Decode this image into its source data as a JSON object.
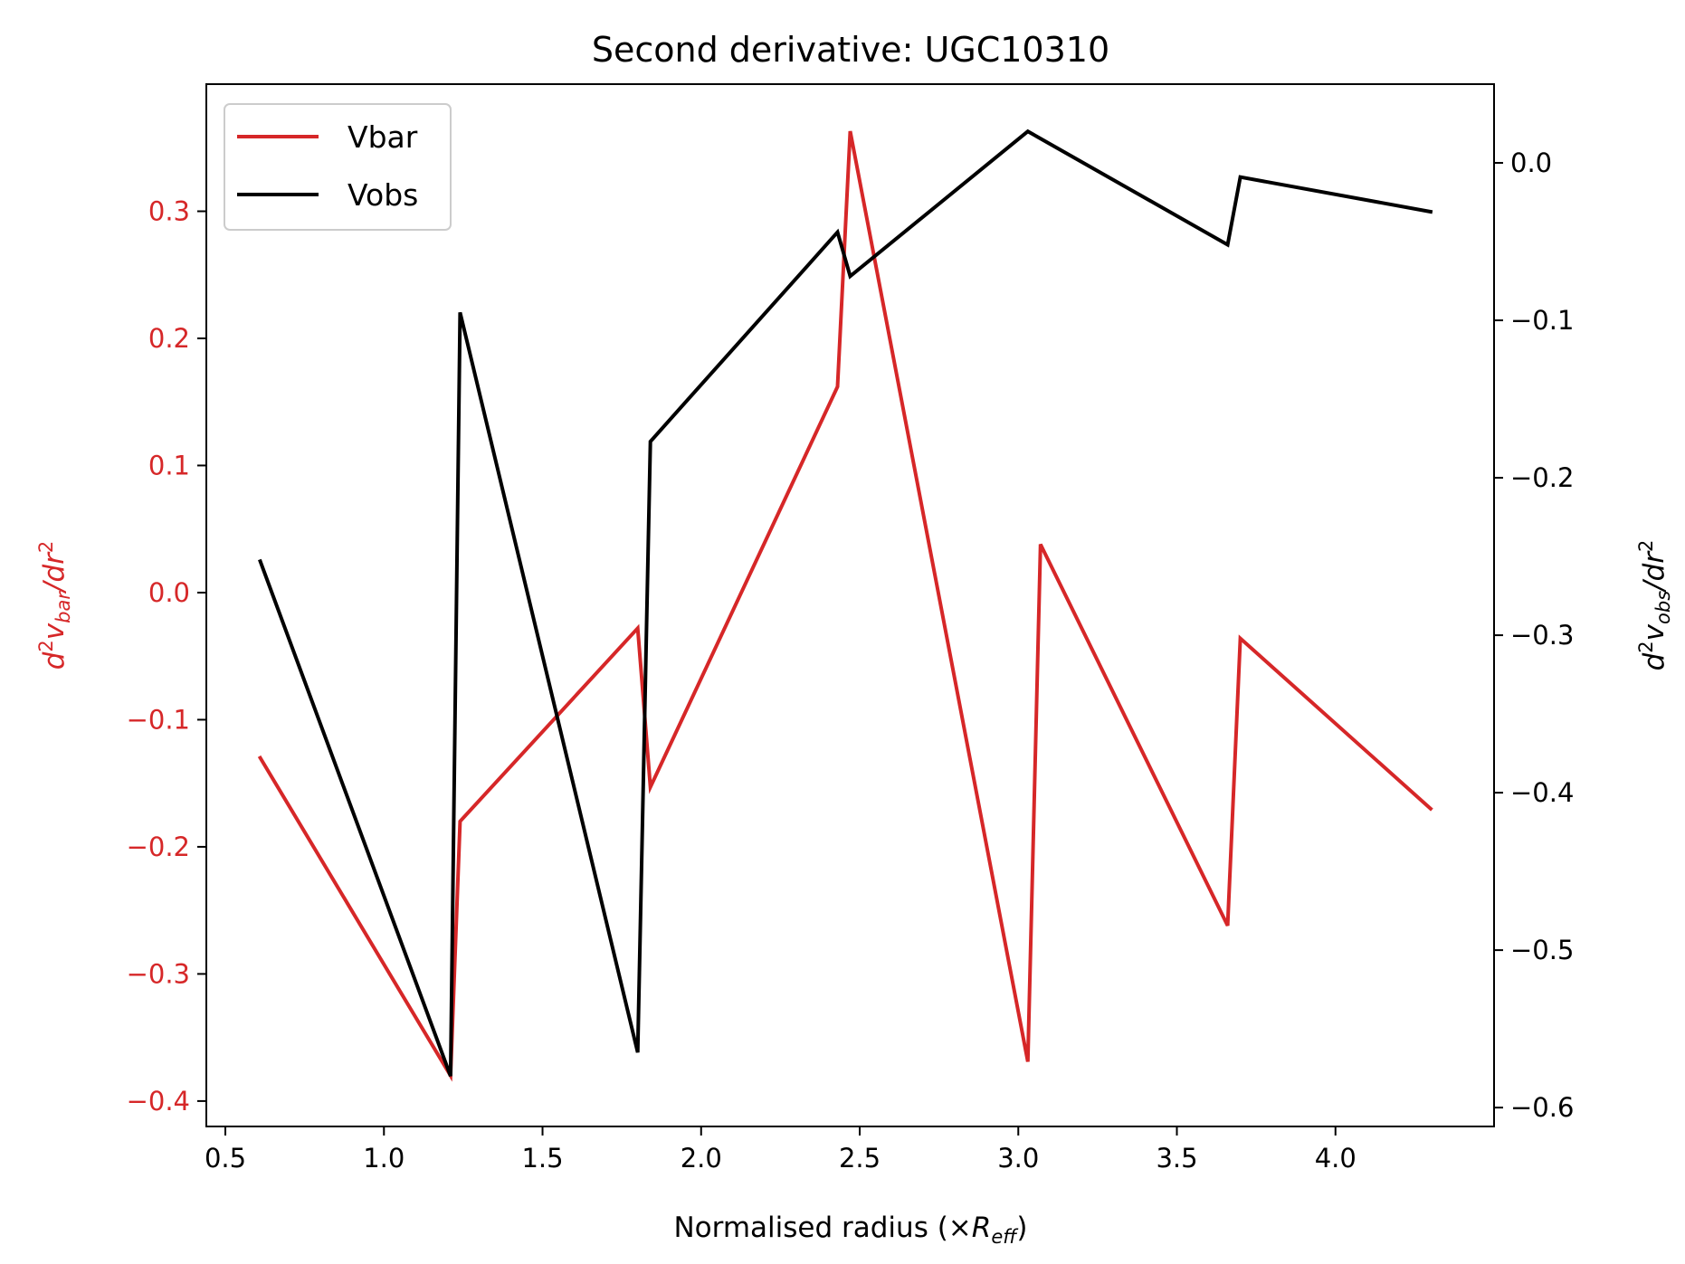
{
  "colors": {
    "vbar": "#d62728",
    "vobs": "#000000",
    "axis": "#000000",
    "background": "#ffffff"
  },
  "chart_data": {
    "type": "line",
    "title": "Second derivative: UGC10310",
    "xlabel": "Normalised radius (×R_eff)",
    "xlabel_prefix": "Normalised radius (×",
    "xlabel_sym": "R",
    "xlabel_sub": "eff",
    "xlabel_suffix": ")",
    "ylabel_left": "d²v_bar/dr²",
    "ylabel_left_parts": {
      "d": "d",
      "sup": "2",
      "v": "v",
      "sub": "bar",
      "mid": "/dr",
      "sup2": "2"
    },
    "ylabel_right": "d²v_obs/dr²",
    "ylabel_right_parts": {
      "d": "d",
      "sup": "2",
      "v": "v",
      "sub": "obs",
      "mid": "/dr",
      "sup2": "2"
    },
    "xlim": [
      0.44,
      4.5
    ],
    "ylim_left": [
      -0.42,
      0.4
    ],
    "ylim_right": [
      -0.612,
      0.05
    ],
    "xticks": [
      0.5,
      1.0,
      1.5,
      2.0,
      2.5,
      3.0,
      3.5,
      4.0
    ],
    "xtick_labels": [
      "0.5",
      "1.0",
      "1.5",
      "2.0",
      "2.5",
      "3.0",
      "3.5",
      "4.0"
    ],
    "yticks_left": [
      -0.4,
      -0.3,
      -0.2,
      -0.1,
      0.0,
      0.1,
      0.2,
      0.3
    ],
    "ytick_labels_left": [
      "−0.4",
      "−0.3",
      "−0.2",
      "−0.1",
      "0.0",
      "0.1",
      "0.2",
      "0.3"
    ],
    "yticks_right": [
      -0.6,
      -0.5,
      -0.4,
      -0.3,
      -0.2,
      -0.1,
      0.0
    ],
    "ytick_labels_right": [
      "−0.6",
      "−0.5",
      "−0.4",
      "−0.3",
      "−0.2",
      "−0.1",
      "0.0"
    ],
    "legend_position": "upper-left",
    "grid": false,
    "series": [
      {
        "name": "Vbar",
        "axis": "left",
        "x": [
          0.61,
          1.21,
          1.24,
          1.8,
          1.84,
          2.43,
          2.47,
          3.03,
          3.07,
          3.66,
          3.7,
          4.3
        ],
        "y": [
          -0.13,
          -0.38,
          -0.18,
          -0.028,
          -0.153,
          0.162,
          0.363,
          -0.369,
          0.038,
          -0.262,
          -0.036,
          -0.17
        ]
      },
      {
        "name": "Vobs",
        "axis": "right",
        "x": [
          0.61,
          1.21,
          1.24,
          1.8,
          1.84,
          2.43,
          2.47,
          3.03,
          3.66,
          3.7,
          4.3
        ],
        "y": [
          -0.253,
          -0.58,
          -0.095,
          -0.565,
          -0.177,
          -0.044,
          -0.072,
          0.02,
          -0.052,
          -0.009,
          -0.031
        ]
      }
    ]
  }
}
